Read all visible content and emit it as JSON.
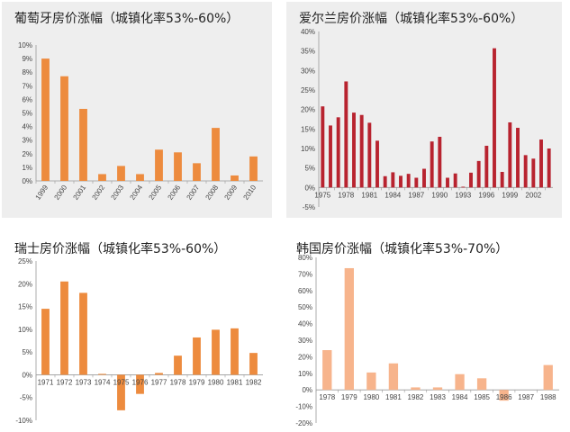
{
  "chart_data": [
    {
      "type": "bar",
      "title": "葡萄牙房价涨幅（城镇化率53%-60%）",
      "categories": [
        "1999",
        "2000",
        "2001",
        "2002",
        "2003",
        "2004",
        "2005",
        "2006",
        "2007",
        "2008",
        "2009",
        "2010"
      ],
      "values": [
        9.0,
        7.7,
        5.3,
        0.5,
        1.1,
        0.5,
        2.3,
        2.1,
        1.3,
        3.9,
        0.4,
        1.8
      ],
      "yticks": [
        "0%",
        "1%",
        "2%",
        "3%",
        "4%",
        "5%",
        "6%",
        "7%",
        "8%",
        "9%",
        "10%"
      ],
      "ylim": [
        0,
        10
      ],
      "color": "#ed8b3e",
      "background": "#eeeeee"
    },
    {
      "type": "bar",
      "title": "爱尔兰房价涨幅（城镇化率53%-60%）",
      "categories": [
        "1975",
        "1976",
        "1977",
        "1978",
        "1979",
        "1980",
        "1981",
        "1982",
        "1983",
        "1984",
        "1985",
        "1986",
        "1987",
        "1988",
        "1989",
        "1990",
        "1991",
        "1992",
        "1993",
        "1994",
        "1995",
        "1996",
        "1997",
        "1998",
        "1999",
        "2000",
        "2001",
        "2002",
        "2003",
        "2004"
      ],
      "xlabels": [
        "1975",
        "",
        "",
        "1978",
        "",
        "",
        "1981",
        "",
        "",
        "1984",
        "",
        "",
        "1987",
        "",
        "",
        "1990",
        "",
        "",
        "1993",
        "",
        "",
        "1996",
        "",
        "",
        "1999",
        "",
        "",
        "2002",
        "",
        ""
      ],
      "values": [
        20.8,
        15.9,
        18.0,
        27.2,
        19.2,
        18.6,
        16.6,
        12.0,
        2.9,
        3.9,
        3.0,
        3.5,
        2.5,
        4.8,
        11.8,
        13.0,
        2.5,
        3.6,
        0.2,
        3.8,
        6.8,
        10.7,
        35.7,
        4.0,
        16.7,
        15.3,
        8.3,
        7.4,
        12.3,
        10.0
      ],
      "yticks": [
        "-5%",
        "0%",
        "5%",
        "10%",
        "15%",
        "20%",
        "25%",
        "30%",
        "35%",
        "40%"
      ],
      "ylim": [
        -5,
        40
      ],
      "color": "#b8232f",
      "background": "#eeeeee"
    },
    {
      "type": "bar",
      "title": "瑞士房价涨幅（城镇化率53%-60%）",
      "categories": [
        "1971",
        "1972",
        "1973",
        "1974",
        "1975",
        "1976",
        "1977",
        "1978",
        "1979",
        "1980",
        "1981",
        "1982"
      ],
      "values": [
        14.5,
        20.5,
        18.0,
        0.2,
        -7.8,
        -4.2,
        0.4,
        4.2,
        8.2,
        9.9,
        10.2,
        4.8
      ],
      "yticks": [
        "-10%",
        "-5%",
        "0%",
        "5%",
        "10%",
        "15%",
        "20%",
        "25%"
      ],
      "ylim": [
        -10,
        25
      ],
      "color": "#ed8b3e",
      "background": "#ffffff"
    },
    {
      "type": "bar",
      "title": "韩国房价涨幅（城镇化率53%-70%）",
      "categories": [
        "1978",
        "1979",
        "1980",
        "1981",
        "1982",
        "1983",
        "1984",
        "1985",
        "1986",
        "1987",
        "1988"
      ],
      "values": [
        24.0,
        73.5,
        10.5,
        16.0,
        1.5,
        1.5,
        9.5,
        7.0,
        -6.5,
        0.0,
        15.0
      ],
      "yticks": [
        "-20%",
        "-10%",
        "0%",
        "10%",
        "20%",
        "30%",
        "40%",
        "50%",
        "60%",
        "70%",
        "80%"
      ],
      "ylim": [
        -20,
        80
      ],
      "color": "#f7b48c",
      "background": "#ffffff"
    }
  ]
}
